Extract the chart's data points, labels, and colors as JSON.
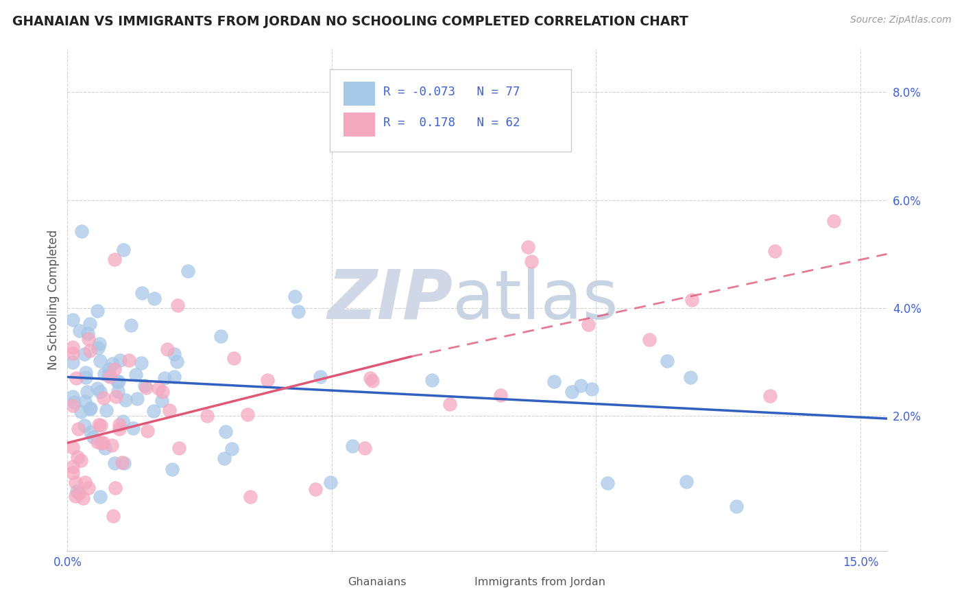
{
  "title": "GHANAIAN VS IMMIGRANTS FROM JORDAN NO SCHOOLING COMPLETED CORRELATION CHART",
  "source": "Source: ZipAtlas.com",
  "ylabel": "No Schooling Completed",
  "xlim": [
    0.0,
    0.155
  ],
  "ylim": [
    -0.005,
    0.088
  ],
  "xticks": [
    0.0,
    0.05,
    0.1,
    0.15
  ],
  "xtick_labels": [
    "0.0%",
    "",
    "",
    "15.0%"
  ],
  "yticks": [
    0.02,
    0.04,
    0.06,
    0.08
  ],
  "ytick_labels": [
    "2.0%",
    "4.0%",
    "6.0%",
    "8.0%"
  ],
  "r_ghanaian": "-0.073",
  "n_ghanaian": "77",
  "r_jordan": " 0.178",
  "n_jordan": "62",
  "color_ghanaian": "#a8c8e8",
  "color_jordan": "#f4a8c0",
  "trendline_ghanaian": "#3060c0",
  "trendline_jordan": "#e05878",
  "watermark_zip_color": "#d0d8e8",
  "watermark_atlas_color": "#c8d4e4",
  "legend_edge_color": "#cccccc",
  "tick_color": "#4060d0",
  "grid_color": "#cccccc",
  "ylabel_color": "#555555",
  "title_color": "#222222",
  "source_color": "#999999",
  "bottom_legend_color": "#555555",
  "trend_blue_x0": 0.0,
  "trend_blue_y0": 0.0272,
  "trend_blue_x1": 0.155,
  "trend_blue_y1": 0.0195,
  "trend_pink_solid_x0": 0.0,
  "trend_pink_solid_y0": 0.015,
  "trend_pink_solid_x1": 0.065,
  "trend_pink_solid_y1": 0.031,
  "trend_pink_dash_x0": 0.065,
  "trend_pink_dash_y0": 0.031,
  "trend_pink_dash_x1": 0.155,
  "trend_pink_dash_y1": 0.05
}
